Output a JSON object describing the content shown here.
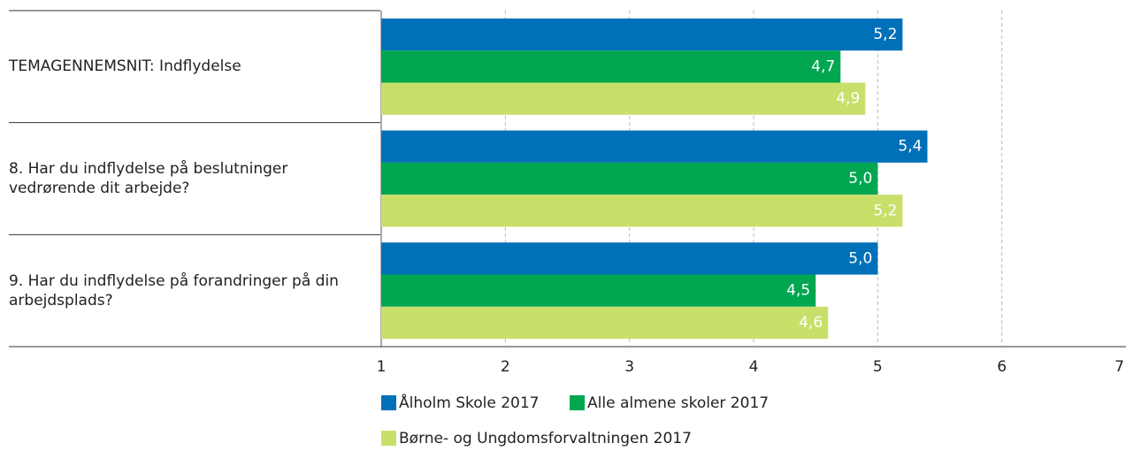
{
  "chart_data": {
    "type": "barh",
    "categories": [
      "TEMAGENNEMSNIT: Indflydelse",
      "8. Har du indflydelse på beslutninger vedrørende dit arbejde?",
      "9. Har du indflydelse på forandringer på din arbejdsplads?"
    ],
    "series": [
      {
        "name": "Ålholm Skole 2017",
        "color": "#0070b8",
        "values": [
          5.2,
          5.4,
          5.0
        ],
        "value_labels": [
          "5,2",
          "5,4",
          "5,0"
        ]
      },
      {
        "name": "Alle almene skoler 2017",
        "color": "#00a650",
        "values": [
          4.7,
          5.0,
          4.5
        ],
        "value_labels": [
          "4,7",
          "5,0",
          "4,5"
        ]
      },
      {
        "name": "Børne- og Ungdomsforvaltningen 2017",
        "color": "#c8e06a",
        "values": [
          4.9,
          5.2,
          4.6
        ],
        "value_labels": [
          "4,9",
          "5,2",
          "4,6"
        ]
      }
    ],
    "xlim": [
      1,
      7
    ],
    "xticks": [
      1,
      2,
      3,
      4,
      5,
      6,
      7
    ],
    "grid": true
  }
}
